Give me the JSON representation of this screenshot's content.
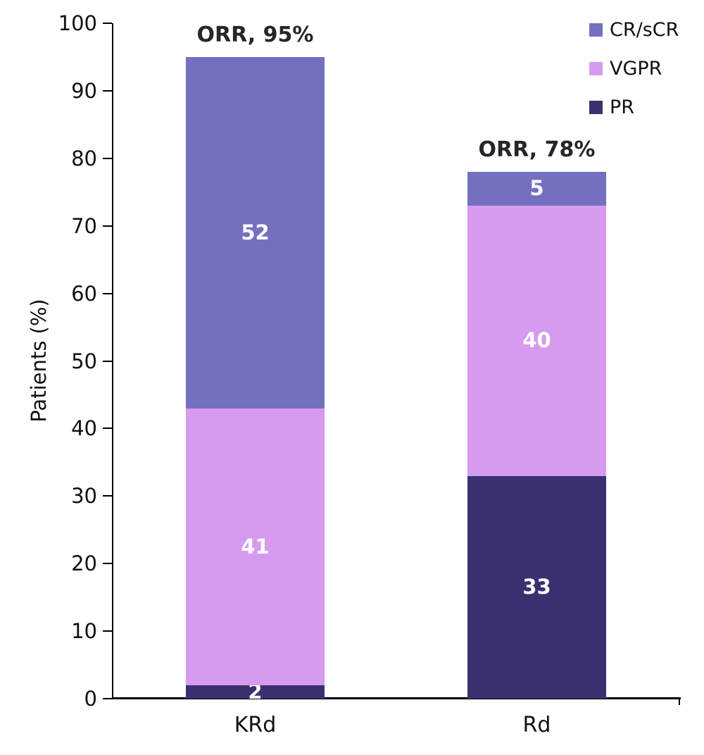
{
  "chart_data": {
    "type": "bar",
    "stacked": true,
    "title": "",
    "ylabel": "Patients (%)",
    "xlabel": "",
    "ylim": [
      0,
      100
    ],
    "ytick_step": 10,
    "grid": false,
    "categories": [
      "KRd",
      "Rd"
    ],
    "series": [
      {
        "name": "PR",
        "color": "#39316F",
        "values": [
          2,
          33
        ]
      },
      {
        "name": "VGPR",
        "color": "#D69BEE",
        "values": [
          41,
          40
        ]
      },
      {
        "name": "CR/sCR",
        "color": "#7470BF",
        "values": [
          52,
          5
        ]
      }
    ],
    "totals": [
      95,
      78
    ],
    "annotations": [
      {
        "category": "KRd",
        "label": "ORR, 95%"
      },
      {
        "category": "Rd",
        "label": "ORR, 78%"
      }
    ],
    "legend": {
      "position": "top-right",
      "order": [
        "CR/sCR",
        "VGPR",
        "PR"
      ]
    },
    "value_label_color": "#FFFFFF",
    "axis_color": "#000000"
  }
}
